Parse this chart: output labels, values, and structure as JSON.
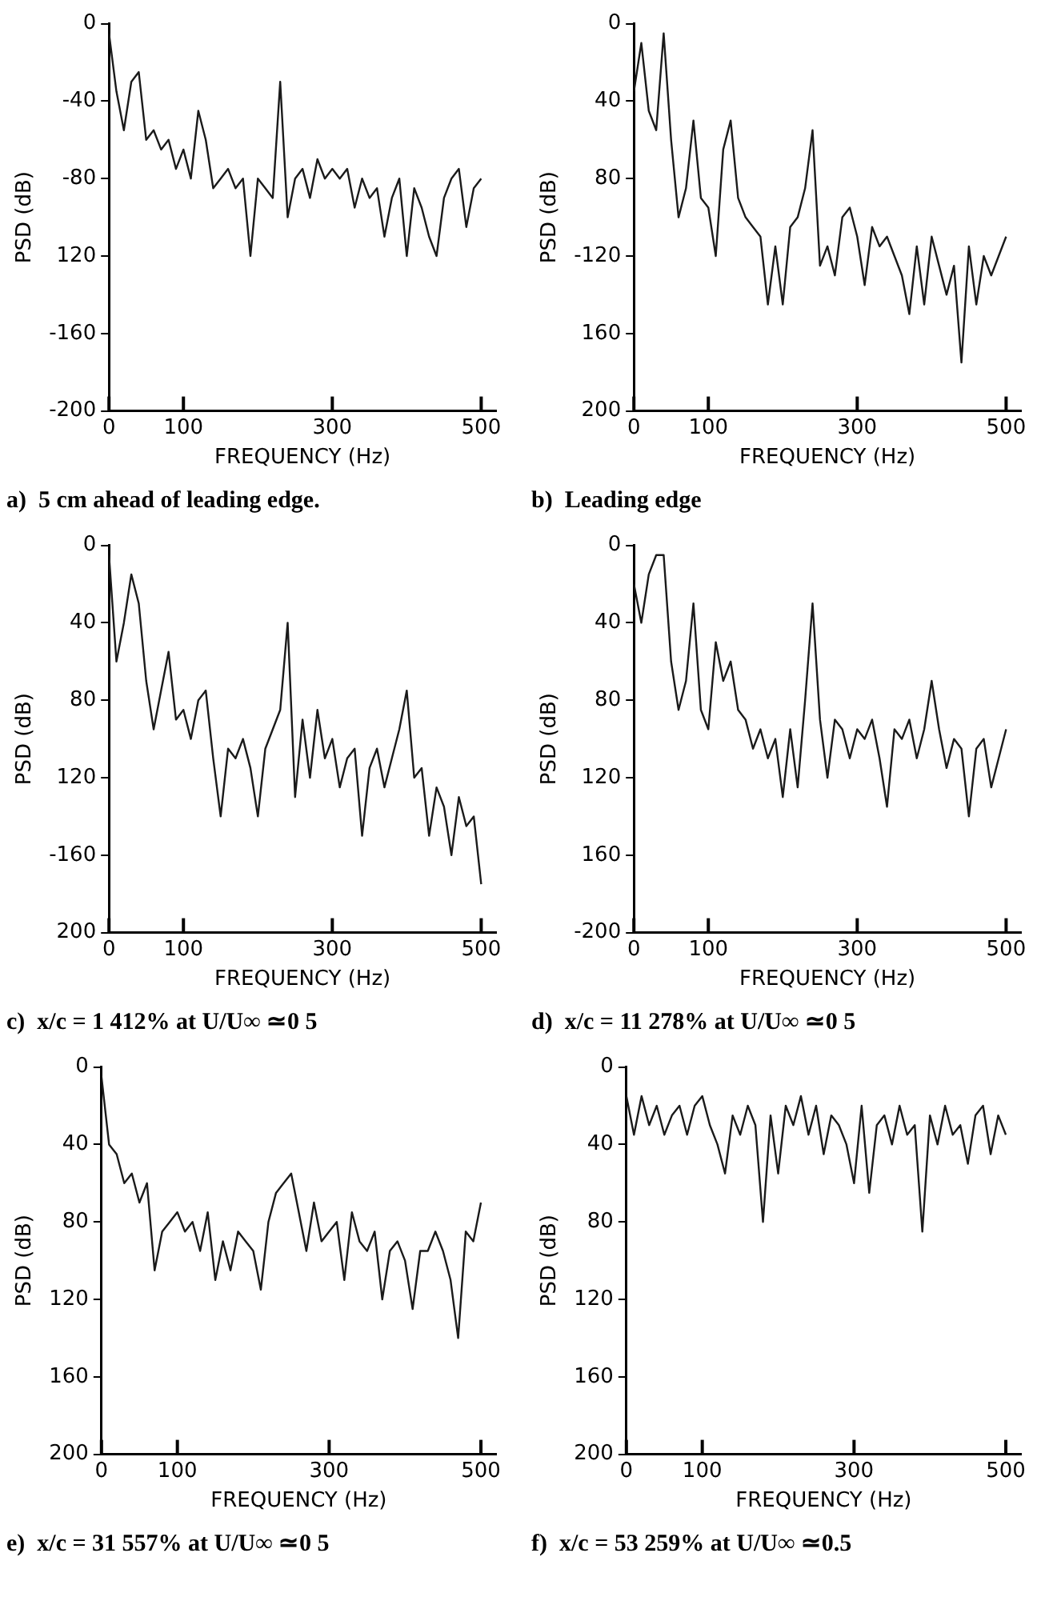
{
  "chart_data": [
    {
      "type": "line",
      "title": "a)  5 cm ahead of leading edge.",
      "xlabel": "FREQUENCY (Hz)",
      "ylabel": "PSD (dB)",
      "color": "#1a1a1a",
      "grid": false,
      "xlim": [
        0,
        520
      ],
      "ylim": [
        -200,
        0
      ],
      "xticks": [
        0,
        100,
        300,
        500
      ],
      "yticks": [
        0,
        -40,
        -80,
        {
          "value": -120,
          "label": "120"
        },
        -160,
        -200
      ],
      "x": [
        0,
        10,
        20,
        30,
        40,
        50,
        60,
        70,
        80,
        90,
        100,
        110,
        120,
        130,
        140,
        150,
        160,
        170,
        180,
        190,
        200,
        210,
        220,
        230,
        240,
        250,
        260,
        270,
        280,
        290,
        300,
        310,
        320,
        330,
        340,
        350,
        360,
        370,
        380,
        390,
        400,
        410,
        420,
        430,
        440,
        450,
        460,
        470,
        480,
        490,
        500
      ],
      "values": [
        -5,
        -35,
        -55,
        -30,
        -25,
        -60,
        -55,
        -65,
        -60,
        -75,
        -65,
        -80,
        -45,
        -60,
        -85,
        -80,
        -75,
        -85,
        -80,
        -120,
        -80,
        -85,
        -90,
        -30,
        -100,
        -80,
        -75,
        -90,
        -70,
        -80,
        -75,
        -80,
        -75,
        -95,
        -80,
        -90,
        -85,
        -110,
        -90,
        -80,
        -120,
        -85,
        -95,
        -110,
        -120,
        -90,
        -80,
        -75,
        -105,
        -85,
        -80
      ]
    },
    {
      "type": "line",
      "title": "b)  Leading edge",
      "xlabel": "FREQUENCY (Hz)",
      "ylabel": "PSD (dB)",
      "color": "#1a1a1a",
      "grid": false,
      "xlim": [
        0,
        520
      ],
      "ylim": [
        -200,
        0
      ],
      "xticks": [
        0,
        100,
        300,
        500
      ],
      "yticks": [
        0,
        {
          "value": -40,
          "label": "40"
        },
        {
          "value": -80,
          "label": "80"
        },
        -120,
        {
          "value": -160,
          "label": "160"
        },
        {
          "value": -200,
          "label": "200"
        }
      ],
      "x": [
        0,
        10,
        20,
        30,
        40,
        50,
        60,
        70,
        80,
        90,
        100,
        110,
        120,
        130,
        140,
        150,
        160,
        170,
        180,
        190,
        200,
        210,
        220,
        230,
        240,
        250,
        260,
        270,
        280,
        290,
        300,
        310,
        320,
        330,
        340,
        350,
        360,
        370,
        380,
        390,
        400,
        410,
        420,
        430,
        440,
        450,
        460,
        470,
        480,
        490,
        500
      ],
      "values": [
        -35,
        -10,
        -45,
        -55,
        -5,
        -60,
        -100,
        -85,
        -50,
        -90,
        -95,
        -120,
        -65,
        -50,
        -90,
        -100,
        -105,
        -110,
        -145,
        -115,
        -145,
        -105,
        -100,
        -85,
        -55,
        -125,
        -115,
        -130,
        -100,
        -95,
        -110,
        -135,
        -105,
        -115,
        -110,
        -120,
        -130,
        -150,
        -115,
        -145,
        -110,
        -125,
        -140,
        -125,
        -175,
        -115,
        -145,
        -120,
        -130,
        -120,
        -110
      ]
    },
    {
      "type": "line",
      "title": "c)  x/c = 1 412% at U/U∞ ≃0 5",
      "xlabel": "FREQUENCY (Hz)",
      "ylabel": "PSD (dB)",
      "color": "#1a1a1a",
      "grid": false,
      "xlim": [
        0,
        520
      ],
      "ylim": [
        -200,
        0
      ],
      "xticks": [
        0,
        100,
        300,
        500
      ],
      "yticks": [
        0,
        {
          "value": -40,
          "label": "40"
        },
        {
          "value": -80,
          "label": "80"
        },
        {
          "value": -120,
          "label": "120"
        },
        -160,
        {
          "value": -200,
          "label": "200"
        }
      ],
      "x": [
        0,
        10,
        20,
        30,
        40,
        50,
        60,
        70,
        80,
        90,
        100,
        110,
        120,
        130,
        140,
        150,
        160,
        170,
        180,
        190,
        200,
        210,
        220,
        230,
        240,
        250,
        260,
        270,
        280,
        290,
        300,
        310,
        320,
        330,
        340,
        350,
        360,
        370,
        380,
        390,
        400,
        410,
        420,
        430,
        440,
        450,
        460,
        470,
        480,
        490,
        500
      ],
      "values": [
        -5,
        -60,
        -40,
        -15,
        -30,
        -70,
        -95,
        -75,
        -55,
        -90,
        -85,
        -100,
        -80,
        -75,
        -110,
        -140,
        -105,
        -110,
        -100,
        -115,
        -140,
        -105,
        -95,
        -85,
        -40,
        -130,
        -90,
        -120,
        -85,
        -110,
        -100,
        -125,
        -110,
        -105,
        -150,
        -115,
        -105,
        -125,
        -110,
        -95,
        -75,
        -120,
        -115,
        -150,
        -125,
        -135,
        -160,
        -130,
        -145,
        -140,
        -175
      ]
    },
    {
      "type": "line",
      "title": "d)  x/c = 11 278% at U/U∞ ≃0 5",
      "xlabel": "FREQUENCY (Hz)",
      "ylabel": "PSD (dB)",
      "color": "#1a1a1a",
      "grid": false,
      "xlim": [
        0,
        520
      ],
      "ylim": [
        -200,
        0
      ],
      "xticks": [
        0,
        100,
        300,
        500
      ],
      "yticks": [
        0,
        {
          "value": -40,
          "label": "40"
        },
        {
          "value": -80,
          "label": "80"
        },
        {
          "value": -120,
          "label": "120"
        },
        {
          "value": -160,
          "label": "160"
        },
        -200
      ],
      "x": [
        0,
        10,
        20,
        30,
        40,
        50,
        60,
        70,
        80,
        90,
        100,
        110,
        120,
        130,
        140,
        150,
        160,
        170,
        180,
        190,
        200,
        210,
        220,
        230,
        240,
        250,
        260,
        270,
        280,
        290,
        300,
        310,
        320,
        330,
        340,
        350,
        360,
        370,
        380,
        390,
        400,
        410,
        420,
        430,
        440,
        450,
        460,
        470,
        480,
        490,
        500
      ],
      "values": [
        -20,
        -40,
        -15,
        -5,
        -5,
        -60,
        -85,
        -70,
        -30,
        -85,
        -95,
        -50,
        -70,
        -60,
        -85,
        -90,
        -105,
        -95,
        -110,
        -100,
        -130,
        -95,
        -125,
        -80,
        -30,
        -90,
        -120,
        -90,
        -95,
        -110,
        -95,
        -100,
        -90,
        -110,
        -135,
        -95,
        -100,
        -90,
        -110,
        -95,
        -70,
        -95,
        -115,
        -100,
        -105,
        -140,
        -105,
        -100,
        -125,
        -110,
        -95
      ]
    },
    {
      "type": "line",
      "title": "e)  x/c = 31 557% at U/U∞ ≃0 5",
      "xlabel": "FREQUENCY (Hz)",
      "ylabel": "PSD (dB)",
      "color": "#1a1a1a",
      "grid": false,
      "xlim": [
        0,
        520
      ],
      "ylim": [
        -200,
        0
      ],
      "xticks": [
        0,
        100,
        300,
        500
      ],
      "yticks": [
        0,
        {
          "value": -40,
          "label": "40"
        },
        {
          "value": -80,
          "label": "80"
        },
        {
          "value": -120,
          "label": "120"
        },
        {
          "value": -160,
          "label": "160"
        },
        {
          "value": -200,
          "label": "200"
        }
      ],
      "x": [
        0,
        10,
        20,
        30,
        40,
        50,
        60,
        70,
        80,
        90,
        100,
        110,
        120,
        130,
        140,
        150,
        160,
        170,
        180,
        190,
        200,
        210,
        220,
        230,
        240,
        250,
        260,
        270,
        280,
        290,
        300,
        310,
        320,
        330,
        340,
        350,
        360,
        370,
        380,
        390,
        400,
        410,
        420,
        430,
        440,
        450,
        460,
        470,
        480,
        490,
        500
      ],
      "values": [
        -5,
        -40,
        -45,
        -60,
        -55,
        -70,
        -60,
        -105,
        -85,
        -80,
        -75,
        -85,
        -80,
        -95,
        -75,
        -110,
        -90,
        -105,
        -85,
        -90,
        -95,
        -115,
        -80,
        -65,
        -60,
        -55,
        -75,
        -95,
        -70,
        -90,
        -85,
        -80,
        -110,
        -75,
        -90,
        -95,
        -85,
        -120,
        -95,
        -90,
        -100,
        -125,
        -95,
        -95,
        -85,
        -95,
        -110,
        -140,
        -85,
        -90,
        -70
      ]
    },
    {
      "type": "line",
      "title": "f)  x/c = 53 259% at U/U∞ ≃0.5",
      "xlabel": "FREQUENCY (Hz)",
      "ylabel": "PSD (dB)",
      "color": "#1a1a1a",
      "grid": false,
      "xlim": [
        0,
        520
      ],
      "ylim": [
        -200,
        0
      ],
      "xticks": [
        0,
        100,
        300,
        500
      ],
      "yticks": [
        0,
        {
          "value": -40,
          "label": "40"
        },
        {
          "value": -80,
          "label": "80"
        },
        {
          "value": -120,
          "label": "120"
        },
        {
          "value": -160,
          "label": "160"
        },
        {
          "value": -200,
          "label": "200"
        }
      ],
      "x": [
        0,
        10,
        20,
        30,
        40,
        50,
        60,
        70,
        80,
        90,
        100,
        110,
        120,
        130,
        140,
        150,
        160,
        170,
        180,
        190,
        200,
        210,
        220,
        230,
        240,
        250,
        260,
        270,
        280,
        290,
        300,
        310,
        320,
        330,
        340,
        350,
        360,
        370,
        380,
        390,
        400,
        410,
        420,
        430,
        440,
        450,
        460,
        470,
        480,
        490,
        500
      ],
      "values": [
        -15,
        -35,
        -15,
        -30,
        -20,
        -35,
        -25,
        -20,
        -35,
        -20,
        -15,
        -30,
        -40,
        -55,
        -25,
        -35,
        -20,
        -30,
        -80,
        -25,
        -55,
        -20,
        -30,
        -15,
        -35,
        -20,
        -45,
        -25,
        -30,
        -40,
        -60,
        -20,
        -65,
        -30,
        -25,
        -40,
        -20,
        -35,
        -30,
        -85,
        -25,
        -40,
        -20,
        -35,
        -30,
        -50,
        -25,
        -20,
        -45,
        -25,
        -35
      ]
    }
  ]
}
